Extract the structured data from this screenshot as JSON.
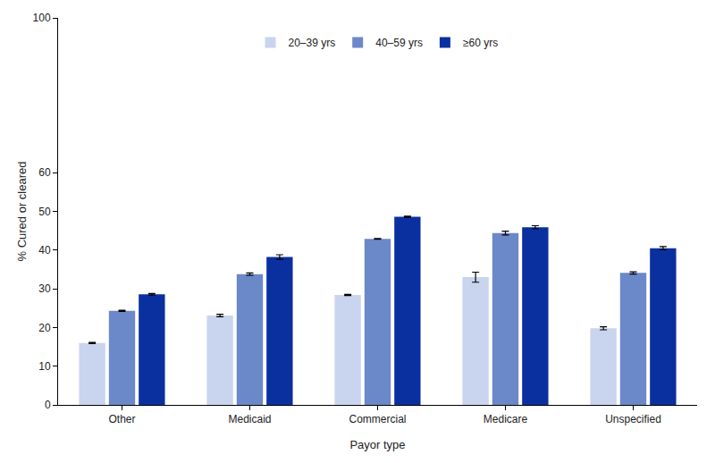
{
  "chart_data": {
    "type": "bar",
    "x_label": "Payor type",
    "y_label": "% Cured or cleared",
    "categories": [
      "Other",
      "Medicaid",
      "Commercial",
      "Medicare",
      "Unspecified"
    ],
    "series": [
      {
        "name": "20–39 yrs",
        "color": "#c9d4ee",
        "values": [
          16.0,
          23.1,
          28.4,
          33.0,
          19.8
        ],
        "errors": [
          0.15,
          0.3,
          0.15,
          1.3,
          0.4
        ]
      },
      {
        "name": "40–59 yrs",
        "color": "#6b88c9",
        "values": [
          24.3,
          33.8,
          42.9,
          44.4,
          34.1
        ],
        "errors": [
          0.15,
          0.3,
          0.1,
          0.5,
          0.3
        ]
      },
      {
        "name": "≥60 yrs",
        "color": "#0a30a0",
        "values": [
          28.6,
          38.2,
          48.6,
          45.9,
          40.5
        ],
        "errors": [
          0.2,
          0.6,
          0.15,
          0.4,
          0.4
        ]
      }
    ],
    "ylim": [
      0,
      100
    ],
    "yticks": [
      0,
      10,
      20,
      30,
      40,
      50,
      60,
      100
    ],
    "grid": false,
    "legend": "top"
  }
}
